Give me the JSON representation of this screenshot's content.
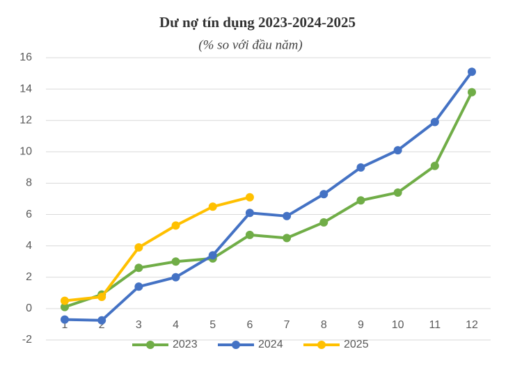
{
  "chart_data": {
    "type": "line",
    "title": "Dư nợ tín dụng 2023-2024-2025",
    "subtitle": "(% so với đầu năm)",
    "categories": [
      "1",
      "2",
      "3",
      "4",
      "5",
      "6",
      "7",
      "8",
      "9",
      "10",
      "11",
      "12"
    ],
    "series": [
      {
        "name": "2023",
        "color": "#70ad47",
        "values": [
          0.1,
          0.9,
          2.6,
          3.0,
          3.2,
          4.7,
          4.5,
          5.5,
          6.9,
          7.4,
          9.1,
          13.8
        ]
      },
      {
        "name": "2024",
        "color": "#4472c4",
        "values": [
          -0.7,
          -0.75,
          1.4,
          2.0,
          3.4,
          6.1,
          5.9,
          7.3,
          9.0,
          10.1,
          11.9,
          15.1
        ]
      },
      {
        "name": "2025",
        "color": "#ffc000",
        "values": [
          0.5,
          0.75,
          3.9,
          5.3,
          6.5,
          7.1,
          null,
          null,
          null,
          null,
          null,
          null
        ]
      }
    ],
    "ylim": [
      -2,
      16
    ],
    "yticks": [
      -2,
      0,
      2,
      4,
      6,
      8,
      10,
      12,
      14,
      16
    ],
    "grid": true,
    "legend": "bottom"
  }
}
